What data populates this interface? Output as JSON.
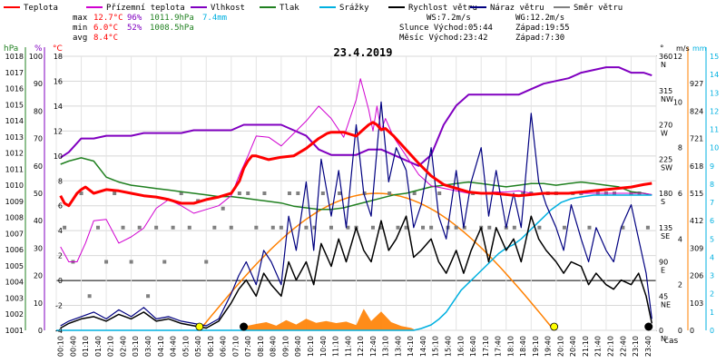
{
  "chart_data": {
    "type": "line",
    "title": "23.4.2019",
    "xlabel": "čas",
    "legend": [
      {
        "key": "teplota",
        "label": "Teplota",
        "color": "#ff0000"
      },
      {
        "key": "pocitova",
        "label": "Přízemní teplota",
        "color": "#d000d0"
      },
      {
        "key": "vlhkost",
        "label": "Vlhkost",
        "color": "#8000c0"
      },
      {
        "key": "tlak",
        "label": "Tlak",
        "color": "#208020"
      },
      {
        "key": "srazky",
        "label": "Srážky",
        "color": "#00b0e0"
      },
      {
        "key": "rychlost",
        "label": "Rychlost větru",
        "color": "#000000"
      },
      {
        "key": "naraz",
        "label": "Náraz větru",
        "color": "#000080"
      },
      {
        "key": "smer",
        "label": "Směr větru",
        "color": "#808080"
      }
    ],
    "stats": {
      "max": {
        "label": "max",
        "temp": "12.7°C",
        "hum": "96%",
        "press": "1011.9hPa",
        "rain": "7.4mm"
      },
      "min": {
        "label": "min",
        "temp": "6.0°C",
        "hum": "52%",
        "press": "1008.5hPa"
      },
      "avg": {
        "label": "avg",
        "temp": "8.4°C"
      }
    },
    "info": {
      "ws": "WS:7.2m/s",
      "wg": "WG:12.2m/s",
      "sun_rise": "Slunce Východ:05:44",
      "sun_set": "Západ:19:55",
      "moon_rise": "Měsíc  Východ:23:42",
      "moon_set": "Západ:7:30"
    },
    "x_ticks": [
      "00:10",
      "00:40",
      "01:10",
      "01:40",
      "02:10",
      "02:40",
      "03:10",
      "03:40",
      "04:10",
      "04:40",
      "05:10",
      "05:40",
      "06:10",
      "06:40",
      "07:10",
      "07:40",
      "08:10",
      "08:40",
      "09:10",
      "09:40",
      "10:10",
      "10:40",
      "11:10",
      "11:40",
      "12:10",
      "12:40",
      "13:10",
      "13:40",
      "14:10",
      "14:40",
      "15:10",
      "15:40",
      "16:10",
      "16:40",
      "17:10",
      "17:40",
      "18:10",
      "18:40",
      "19:10",
      "19:40",
      "20:10",
      "20:40",
      "21:10",
      "21:40",
      "22:10",
      "22:40",
      "23:10",
      "23:40"
    ],
    "axes": {
      "hpa": {
        "label": "hPa",
        "color": "#208020",
        "ticks": [
          1001,
          1002,
          1003,
          1004,
          1005,
          1006,
          1007,
          1008,
          1009,
          1010,
          1011,
          1012,
          1013,
          1014,
          1015,
          1016,
          1017,
          1018
        ],
        "ylim": [
          1001,
          1018
        ]
      },
      "pct": {
        "label": "%",
        "color": "#8000c0",
        "ticks": [
          0,
          10,
          20,
          30,
          40,
          50,
          60,
          70,
          80,
          90,
          100
        ],
        "ylim": [
          0,
          100
        ]
      },
      "c": {
        "label": "°C",
        "color": "#ff0000",
        "ticks": [
          -4,
          -2,
          0,
          2,
          4,
          6,
          8,
          10,
          12,
          14,
          16,
          18
        ],
        "ylim": [
          -4,
          18
        ]
      },
      "deg": {
        "label": "°",
        "color": "#000000",
        "ticks": [
          {
            "v": 0,
            "l": "0",
            "d": "N"
          },
          {
            "v": 45,
            "l": "45",
            "d": "NE"
          },
          {
            "v": 90,
            "l": "90",
            "d": "E"
          },
          {
            "v": 135,
            "l": "135",
            "d": "SE"
          },
          {
            "v": 180,
            "l": "180",
            "d": "S"
          },
          {
            "v": 225,
            "l": "225",
            "d": "SW"
          },
          {
            "v": 270,
            "l": "270",
            "d": "W"
          },
          {
            "v": 315,
            "l": "315",
            "d": "NW"
          },
          {
            "v": 360,
            "l": "360",
            "d": "N"
          }
        ],
        "ylim": [
          0,
          360
        ]
      },
      "ms": {
        "label": "m/s",
        "color": "#000000",
        "ticks": [
          0,
          2,
          4,
          6,
          8,
          10,
          12
        ],
        "ylim": [
          0,
          12
        ]
      },
      "mm": {
        "label": "mm",
        "color": "#00b0e0",
        "ticks": [
          0,
          1,
          2,
          3,
          4,
          5,
          6,
          7,
          8,
          9,
          10,
          11,
          12,
          13,
          14,
          15
        ],
        "ylim": [
          0,
          15
        ]
      },
      "sun": {
        "label": "",
        "color": "#ff8000",
        "ticks": [
          0,
          103,
          206,
          309,
          412,
          515,
          618,
          721,
          824,
          927
        ],
        "ylim": [
          0,
          1030
        ]
      }
    },
    "sun_markers": {
      "sunrise": 5.73,
      "sunset": 19.92,
      "moonset": 7.5,
      "moonrise": 23.7
    },
    "series": {
      "teplota": {
        "x": [
          0.17,
          0.33,
          0.5,
          0.83,
          1,
          1.17,
          1.5,
          2,
          2.5,
          3,
          3.5,
          4,
          4.5,
          5,
          5.5,
          6,
          6.5,
          7,
          7.17,
          7.33,
          7.5,
          7.67,
          7.83,
          8,
          8.5,
          9,
          9.5,
          10,
          10.5,
          10.83,
          11,
          11.5,
          12,
          12.33,
          12.5,
          12.67,
          12.83,
          13,
          13.17,
          13.5,
          14,
          14.5,
          15,
          15.5,
          16,
          16.5,
          17,
          17.5,
          18,
          18.5,
          19,
          19.5,
          20,
          20.5,
          21,
          21.5,
          22,
          22.5,
          23,
          23.5,
          23.83
        ],
        "y": [
          6.8,
          6.2,
          6.0,
          7.0,
          7.3,
          7.5,
          7.0,
          7.3,
          7.2,
          7.0,
          6.8,
          6.7,
          6.5,
          6.2,
          6.2,
          6.5,
          6.7,
          7.0,
          7.5,
          8.0,
          9.0,
          9.6,
          10.0,
          10.0,
          9.7,
          9.9,
          10.0,
          10.6,
          11.4,
          11.8,
          11.9,
          11.9,
          11.6,
          12.2,
          12.5,
          12.7,
          12.5,
          12.1,
          12.2,
          11.6,
          10.5,
          9.4,
          8.4,
          7.7,
          7.4,
          7.1,
          7.0,
          7.0,
          6.9,
          6.8,
          6.9,
          7.0,
          7.0,
          7.0,
          7.1,
          7.2,
          7.3,
          7.4,
          7.5,
          7.7,
          7.8
        ]
      },
      "pocitova": {
        "x": [
          0.17,
          0.5,
          0.83,
          1.17,
          1.5,
          2,
          2.5,
          3,
          3.5,
          4,
          4.5,
          5,
          5.5,
          6,
          6.5,
          7,
          7.33,
          7.67,
          8,
          8.5,
          9,
          9.5,
          10,
          10.5,
          11,
          11.5,
          11.83,
          12,
          12.17,
          12.33,
          12.5,
          12.67,
          12.83,
          13,
          13.17,
          13.5,
          14,
          14.5,
          15,
          15.5,
          16,
          16.5,
          17,
          17.5,
          18,
          18.5,
          19,
          19.5,
          20,
          20.5,
          21,
          21.5,
          22,
          22.5,
          23,
          23.5,
          23.83
        ],
        "y": [
          2.7,
          1.5,
          1.5,
          3.0,
          4.8,
          4.9,
          3.0,
          3.5,
          4.2,
          5.8,
          6.5,
          6.0,
          5.4,
          5.7,
          6.0,
          6.8,
          8.5,
          10.0,
          11.6,
          11.5,
          10.8,
          11.8,
          12.8,
          14.0,
          13.0,
          11.5,
          13.5,
          14.5,
          16.2,
          15.0,
          13.7,
          12.0,
          14.0,
          12.0,
          13.0,
          11.5,
          10.0,
          8.5,
          7.6,
          7.4,
          7.2,
          7.0,
          7.0,
          7.1,
          7.1,
          7.2,
          7.0,
          7.0,
          7.0,
          7.0,
          7.0,
          7.0,
          7.0,
          7.0,
          7.0,
          7.0,
          6.9
        ]
      },
      "vlhkost": {
        "x": [
          0.17,
          0.5,
          1,
          1.5,
          2,
          2.5,
          3,
          3.5,
          4,
          4.5,
          5,
          5.5,
          6,
          6.5,
          7,
          7.5,
          8,
          8.5,
          9,
          9.5,
          10,
          10.5,
          11,
          11.5,
          12,
          12.5,
          13,
          13.5,
          14,
          14.5,
          15,
          15.5,
          16,
          16.5,
          17,
          17.5,
          18,
          18.5,
          19,
          19.5,
          20,
          20.5,
          21,
          21.5,
          22,
          22.5,
          23,
          23.5,
          23.83
        ],
        "y": [
          63,
          65,
          70,
          70,
          71,
          71,
          71,
          72,
          72,
          72,
          72,
          73,
          73,
          73,
          73,
          75,
          75,
          75,
          75,
          73,
          71,
          66,
          64,
          64,
          64,
          66,
          66,
          64,
          62,
          60,
          64,
          75,
          82,
          86,
          86,
          86,
          86,
          86,
          88,
          90,
          91,
          92,
          94,
          95,
          96,
          96,
          94,
          94,
          93
        ]
      },
      "tlak": {
        "x": [
          0.17,
          0.5,
          1,
          1.5,
          2,
          2.5,
          3,
          3.5,
          4,
          4.5,
          5,
          5.5,
          6,
          6.5,
          7,
          7.5,
          8,
          8.5,
          9,
          9.5,
          10,
          10.5,
          11,
          11.5,
          12,
          12.5,
          13,
          13.5,
          14,
          14.5,
          15,
          15.5,
          16,
          16.5,
          17,
          17.5,
          18,
          18.5,
          19,
          19.5,
          20,
          20.5,
          21,
          21.5,
          22,
          22.5,
          23,
          23.5,
          23.83
        ],
        "y": [
          1011.3,
          1011.5,
          1011.7,
          1011.5,
          1010.5,
          1010.2,
          1010.0,
          1009.9,
          1009.8,
          1009.7,
          1009.6,
          1009.5,
          1009.4,
          1009.3,
          1009.3,
          1009.2,
          1009.1,
          1009.0,
          1008.9,
          1008.7,
          1008.6,
          1008.5,
          1008.5,
          1008.6,
          1008.8,
          1009.0,
          1009.2,
          1009.4,
          1009.5,
          1009.7,
          1009.9,
          1010.0,
          1010.1,
          1010.2,
          1010.1,
          1010.0,
          1009.9,
          1010.0,
          1010.1,
          1010.1,
          1010.0,
          1010.1,
          1010.2,
          1010.1,
          1010.0,
          1009.9,
          1009.6,
          1009.5,
          1009.4
        ]
      },
      "srazky": {
        "x": [
          0,
          14.3,
          14.6,
          15,
          15.3,
          15.6,
          15.9,
          16.2,
          16.5,
          16.8,
          17.1,
          17.4,
          17.7,
          18,
          18.3,
          18.6,
          18.9,
          19.2,
          19.5,
          19.8,
          20.2,
          20.6,
          21,
          21.5,
          22,
          23,
          23.83
        ],
        "y": [
          0,
          0,
          0.1,
          0.3,
          0.6,
          1.0,
          1.6,
          2.2,
          2.6,
          3.0,
          3.4,
          3.8,
          4.2,
          4.5,
          4.7,
          5.0,
          5.4,
          5.8,
          6.2,
          6.6,
          7.0,
          7.2,
          7.3,
          7.4,
          7.4,
          7.4,
          7.4
        ]
      },
      "rychlost": {
        "x": [
          0.17,
          0.5,
          1,
          1.5,
          2,
          2.5,
          3,
          3.5,
          4,
          4.5,
          5,
          5.5,
          6,
          6.5,
          7,
          7.3,
          7.6,
          8,
          8.3,
          8.6,
          9,
          9.3,
          9.6,
          10,
          10.3,
          10.6,
          11,
          11.3,
          11.6,
          12,
          12.3,
          12.6,
          13,
          13.3,
          13.6,
          14,
          14.3,
          14.6,
          15,
          15.3,
          15.6,
          16,
          16.3,
          16.6,
          17,
          17.3,
          17.6,
          18,
          18.3,
          18.6,
          19,
          19.3,
          19.6,
          20,
          20.3,
          20.6,
          21,
          21.3,
          21.6,
          22,
          22.3,
          22.6,
          23,
          23.3,
          23.6,
          23.83
        ],
        "y": [
          0.1,
          0.3,
          0.5,
          0.6,
          0.4,
          0.7,
          0.5,
          0.8,
          0.4,
          0.5,
          0.3,
          0.2,
          0.1,
          0.4,
          1.2,
          1.8,
          2.2,
          1.5,
          2.5,
          2.0,
          1.5,
          3.0,
          2.2,
          3.0,
          2.0,
          3.8,
          2.8,
          4.0,
          3.0,
          4.5,
          3.5,
          3.0,
          4.8,
          3.5,
          4.0,
          5.0,
          3.2,
          3.5,
          4.0,
          3.0,
          2.5,
          3.5,
          2.5,
          3.5,
          4.5,
          3.0,
          4.5,
          3.5,
          4.0,
          3.0,
          5.0,
          4.0,
          3.5,
          3.0,
          2.5,
          3.0,
          2.8,
          2.0,
          2.5,
          2.0,
          1.8,
          2.2,
          2.0,
          2.5,
          1.5,
          0.3
        ]
      },
      "naraz": {
        "x": [
          0.17,
          0.5,
          1,
          1.5,
          2,
          2.5,
          3,
          3.5,
          4,
          4.5,
          5,
          5.5,
          6,
          6.5,
          7,
          7.3,
          7.6,
          8,
          8.3,
          8.6,
          9,
          9.3,
          9.6,
          10,
          10.3,
          10.6,
          11,
          11.3,
          11.6,
          12,
          12.3,
          12.6,
          13,
          13.3,
          13.6,
          14,
          14.3,
          14.6,
          15,
          15.3,
          15.6,
          16,
          16.3,
          16.6,
          17,
          17.3,
          17.6,
          18,
          18.3,
          18.6,
          19,
          19.3,
          19.6,
          20,
          20.3,
          20.6,
          21,
          21.3,
          21.6,
          22,
          22.3,
          22.6,
          23,
          23.3,
          23.6,
          23.83
        ],
        "y": [
          0.2,
          0.4,
          0.6,
          0.8,
          0.5,
          0.9,
          0.6,
          1.0,
          0.5,
          0.6,
          0.4,
          0.3,
          0.2,
          0.5,
          1.6,
          2.4,
          3.0,
          2.0,
          3.5,
          3.0,
          2.0,
          5.0,
          3.5,
          6.5,
          3.5,
          7.5,
          5.0,
          7.0,
          4.5,
          9.0,
          6.0,
          5.0,
          10.0,
          6.5,
          8.0,
          7.0,
          4.5,
          5.5,
          8.0,
          5.0,
          4.0,
          7.0,
          4.5,
          6.5,
          8.0,
          5.0,
          7.0,
          4.5,
          6.0,
          4.5,
          9.5,
          6.5,
          5.5,
          4.5,
          3.5,
          5.5,
          4.0,
          3.0,
          4.5,
          3.5,
          3.0,
          4.5,
          5.5,
          4.0,
          2.5,
          0.5
        ]
      },
      "smer": {
        "x": [
          0.33,
          0.67,
          1,
          1.33,
          1.67,
          2,
          2.33,
          2.67,
          3,
          3.33,
          3.67,
          4,
          4.33,
          4.67,
          5,
          5.33,
          5.67,
          6,
          6.33,
          6.67,
          7,
          7.33,
          7.67,
          8,
          8.33,
          8.67,
          9,
          9.33,
          9.67,
          10,
          10.33,
          10.67,
          11,
          11.33,
          11.67,
          12,
          12.33,
          12.67,
          13,
          13.33,
          13.67,
          14,
          14.33,
          14.67,
          15,
          15.33,
          15.67,
          16,
          16.33,
          16.67,
          17,
          17.33,
          17.67,
          18,
          18.33,
          18.67,
          19,
          19.33,
          19.67,
          20,
          20.33,
          20.67,
          21,
          21.33,
          21.67,
          22,
          22.33,
          22.67,
          23,
          23.33,
          23.67
        ],
        "y": [
          135,
          90,
          180,
          45,
          135,
          90,
          180,
          135,
          90,
          135,
          45,
          135,
          90,
          135,
          180,
          135,
          170,
          90,
          135,
          160,
          135,
          180,
          180,
          135,
          180,
          135,
          135,
          180,
          180,
          135,
          135,
          180,
          135,
          180,
          135,
          135,
          180,
          135,
          135,
          180,
          135,
          135,
          180,
          135,
          135,
          180,
          135,
          135,
          135,
          180,
          135,
          135,
          180,
          135,
          135,
          180,
          180,
          135,
          180,
          180,
          135,
          180,
          180,
          135,
          180,
          180,
          180,
          135,
          180,
          180,
          135
        ]
      }
    }
  }
}
